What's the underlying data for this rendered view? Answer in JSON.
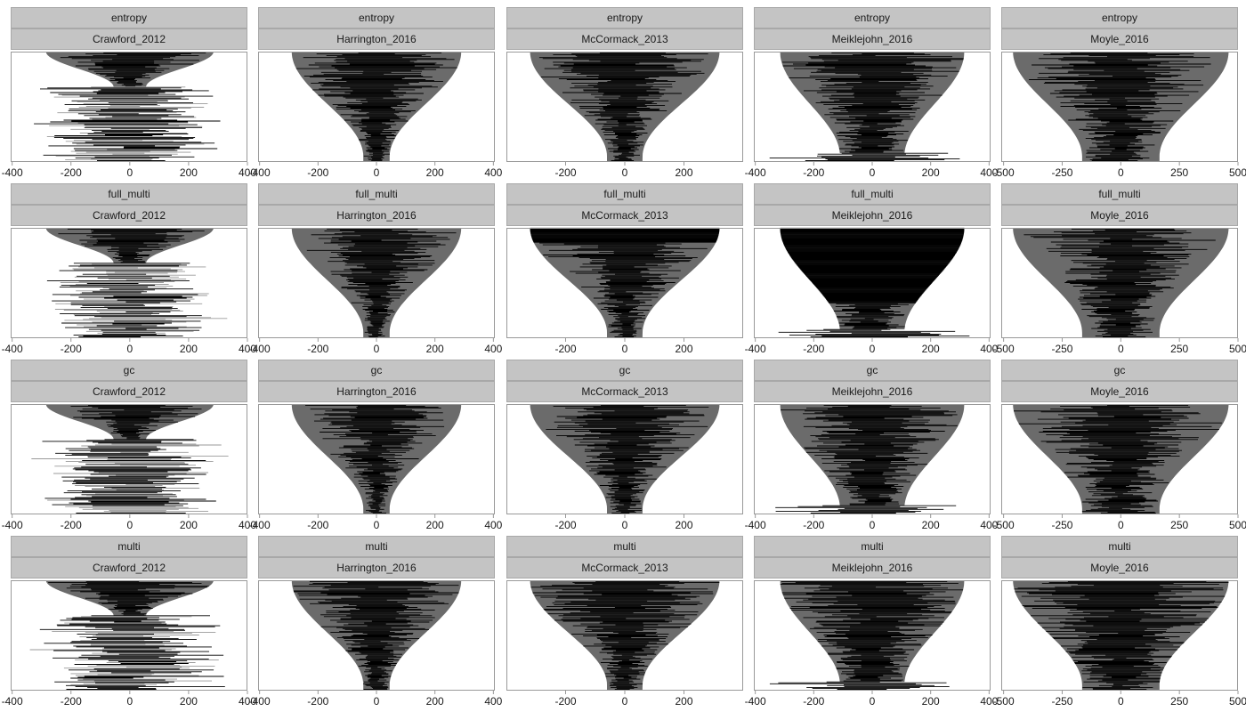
{
  "chart_data": {
    "type": "faceted-range-plot",
    "facet_rows": [
      "entropy",
      "full_multi",
      "gc",
      "multi"
    ],
    "facet_cols": [
      "Crawford_2012",
      "Harrington_2016",
      "McCormack_2013",
      "Meiklejohn_2016",
      "Moyle_2016"
    ],
    "x_ticks": {
      "Crawford_2012": [
        -400,
        -200,
        0,
        200,
        400
      ],
      "Harrington_2016": [
        -400,
        -200,
        0,
        200,
        400
      ],
      "McCormack_2013": [
        -200,
        0,
        200
      ],
      "Meiklejohn_2016": [
        -400,
        -200,
        0,
        200,
        400
      ],
      "Moyle_2016": [
        -500,
        -250,
        0,
        250,
        500
      ]
    },
    "xlim": {
      "Crawford_2012": [
        -405,
        400
      ],
      "Harrington_2016": [
        -405,
        405
      ],
      "McCormack_2013": [
        -400,
        400
      ],
      "Meiklejohn_2016": [
        -405,
        405
      ],
      "Moyle_2016": [
        -510,
        500
      ]
    },
    "envelope": {
      "Crawford_2012": {
        "top_half_width": 285,
        "min_half_width": 55,
        "lower_half_width": 320,
        "step_fraction": 0.32
      },
      "Harrington_2016": {
        "top_half_width": 290,
        "min_half_width": 45
      },
      "McCormack_2013": {
        "top_half_width": 320,
        "min_half_width": 60
      },
      "Meiklejohn_2016": {
        "top_half_width": 315,
        "min_half_width": 110,
        "bottom_band_half_width": 340
      },
      "Moyle_2016": {
        "top_half_width": 460,
        "min_half_width": 165
      }
    },
    "density": {
      "entropy": [
        0.55,
        0.6,
        0.5,
        0.6,
        0.45
      ],
      "full_multi": [
        0.5,
        0.45,
        0.5,
        0.6,
        0.35
      ],
      "gc": [
        0.5,
        0.4,
        0.5,
        0.55,
        0.55
      ],
      "multi": [
        0.65,
        0.7,
        0.7,
        0.75,
        0.85
      ]
    },
    "solid_block_fraction": {
      "full_multi|McCormack_2013": 0.13,
      "full_multi|Meiklejohn_2016": 0.68
    },
    "colors": {
      "envelope": "#6b6b6b",
      "lines": "#000000",
      "strip": "#c4c4c4",
      "axis": "#999999"
    }
  }
}
